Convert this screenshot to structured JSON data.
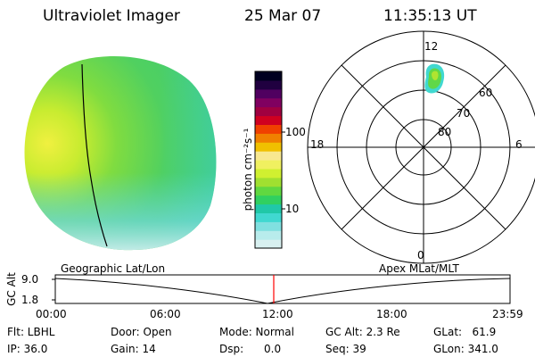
{
  "header": {
    "instrument": "Ultraviolet Imager",
    "date": "25 Mar 07",
    "time": "11:35:13 UT"
  },
  "colorbar": {
    "unit_label": "photon cm⁻²s⁻¹",
    "ticks": [
      "100",
      "10"
    ],
    "colors": [
      "#d8f0f0",
      "#b8ecec",
      "#80e0e0",
      "#40d8d0",
      "#20c8a8",
      "#30d060",
      "#60d840",
      "#a0e030",
      "#d0f030",
      "#f0f060",
      "#f8e890",
      "#f0c000",
      "#f08000",
      "#f04000",
      "#d00020",
      "#a00040",
      "#800060",
      "#500060",
      "#200040",
      "#000020"
    ]
  },
  "polar_plot": {
    "mlt_labels": {
      "top": "12",
      "left": "18",
      "right": "6",
      "bottom": "0"
    },
    "lat_labels": [
      "60",
      "70",
      "80"
    ]
  },
  "timeline": {
    "left_label": "Geographic Lat/Lon",
    "right_label": "Apex MLat/MLT",
    "axis_title": "GC Alt",
    "y_ticks": [
      "9.0",
      "1.8"
    ],
    "x_ticks": [
      "00:00",
      "06:00",
      "12:00",
      "18:00",
      "23:59"
    ],
    "marker_color": "#ff0000"
  },
  "status": {
    "flt": "Flt: LBHL",
    "ip": "IP: 36.0",
    "door": "Door: Open",
    "gain": "Gain: 14",
    "mode": "Mode: Normal",
    "dsp": "Dsp:      0.0",
    "gc_alt": "GC Alt: 2.3 Re",
    "seq": "Seq: 39",
    "glat": "GLat:   61.9",
    "glon": "GLon: 341.0"
  }
}
